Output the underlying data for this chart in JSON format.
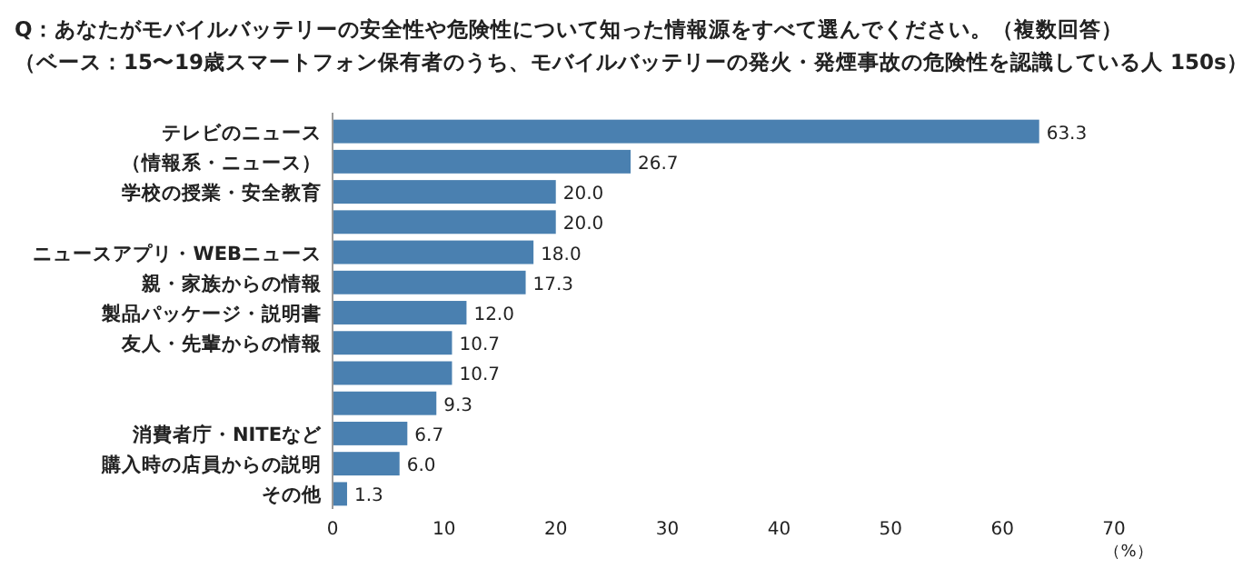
{
  "chart_data": {
    "type": "bar",
    "orientation": "horizontal",
    "title": "Q：あなたがモバイルバッテリーの安全性や危険性について知った情報源をすべて選んでください。（複数回答）",
    "subtitle": "（ベース：15〜19歳スマートフォン保有者のうち、モバイルバッテリーの発火・発煙事故の危険性を認識している人 150s）",
    "xlabel": "（%）",
    "categories": [
      "テレビのニュース",
      "（情報系・ニュース）",
      "学校の授業・安全教育",
      null,
      "ニュースアプリ・WEBニュース",
      "親・家族からの情報",
      "製品パッケージ・説明書",
      "友人・先輩からの情報",
      null,
      null,
      "消費者庁・NITEなど",
      "購入時の店員からの説明",
      "その他"
    ],
    "values": [
      63.3,
      26.7,
      20.0,
      20.0,
      18.0,
      17.3,
      12.0,
      10.7,
      10.7,
      9.3,
      6.7,
      6.0,
      1.3
    ],
    "color": "#4a80b0",
    "xlim": [
      0,
      70
    ],
    "xticks": [
      0,
      10,
      20,
      30,
      40,
      50,
      60,
      70
    ],
    "value_labels": [
      "63.3",
      "26.7",
      "20.0",
      "20.0",
      "18.0",
      "17.3",
      "12.0",
      "10.7",
      "10.7",
      "9.3",
      "6.7",
      "6.0",
      "1.3"
    ]
  }
}
